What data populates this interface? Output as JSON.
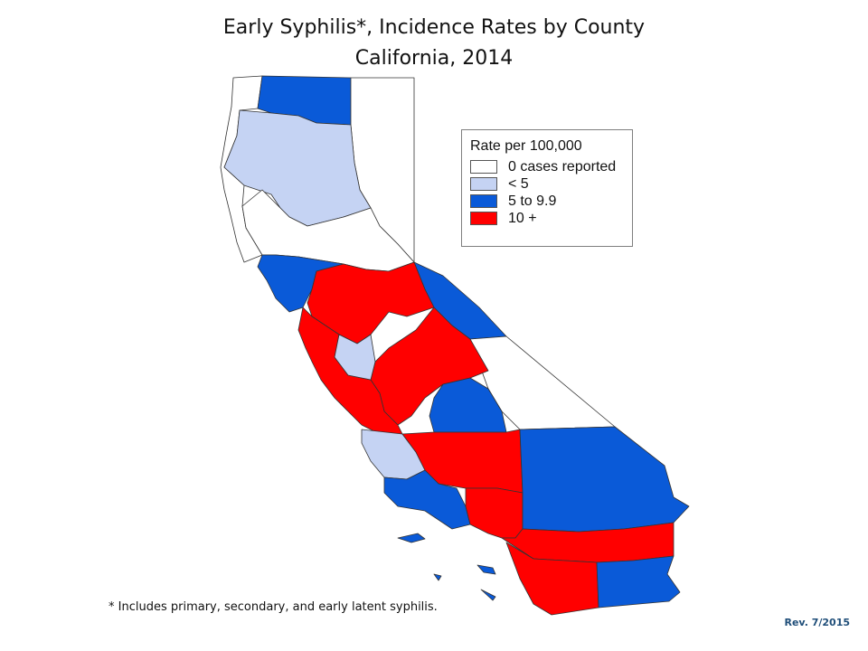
{
  "title_line1": "Early Syphilis*, Incidence Rates by County",
  "title_line2": "California, 2014",
  "legend": {
    "title": "Rate per 100,000",
    "items": [
      {
        "label": "0 cases reported",
        "color": "#ffffff"
      },
      {
        "label": "< 5",
        "color": "#c5d3f3"
      },
      {
        "label": "5 to 9.9",
        "color": "#0a5ad8"
      },
      {
        "label": "10 +",
        "color": "#ff0000"
      }
    ]
  },
  "footnote": "* Includes primary, secondary, and early latent syphilis.",
  "revision": "Rev. 7/2015",
  "regions": [
    {
      "name": "north-coast",
      "category": "0 cases reported"
    },
    {
      "name": "far-north",
      "category": "5 to 9.9"
    },
    {
      "name": "northeast",
      "category": "0 cases reported"
    },
    {
      "name": "north-valley",
      "category": "< 5"
    },
    {
      "name": "sierra",
      "category": "0 cases reported"
    },
    {
      "name": "north-bay",
      "category": "5 to 9.9"
    },
    {
      "name": "sacramento",
      "category": "10 +"
    },
    {
      "name": "bay-area",
      "category": "10 +"
    },
    {
      "name": "central-valley",
      "category": "10 +"
    },
    {
      "name": "eastern-sierra",
      "category": "5 to 9.9"
    },
    {
      "name": "inyo",
      "category": "0 cases reported"
    },
    {
      "name": "central-coast",
      "category": "< 5"
    },
    {
      "name": "tulare",
      "category": "5 to 9.9"
    },
    {
      "name": "kern",
      "category": "10 +"
    },
    {
      "name": "san-bernardino",
      "category": "5 to 9.9"
    },
    {
      "name": "los-angeles",
      "category": "10 +"
    },
    {
      "name": "ventura",
      "category": "5 to 9.9"
    },
    {
      "name": "riverside",
      "category": "10 +"
    },
    {
      "name": "san-diego",
      "category": "10 +"
    },
    {
      "name": "imperial",
      "category": "5 to 9.9"
    }
  ]
}
